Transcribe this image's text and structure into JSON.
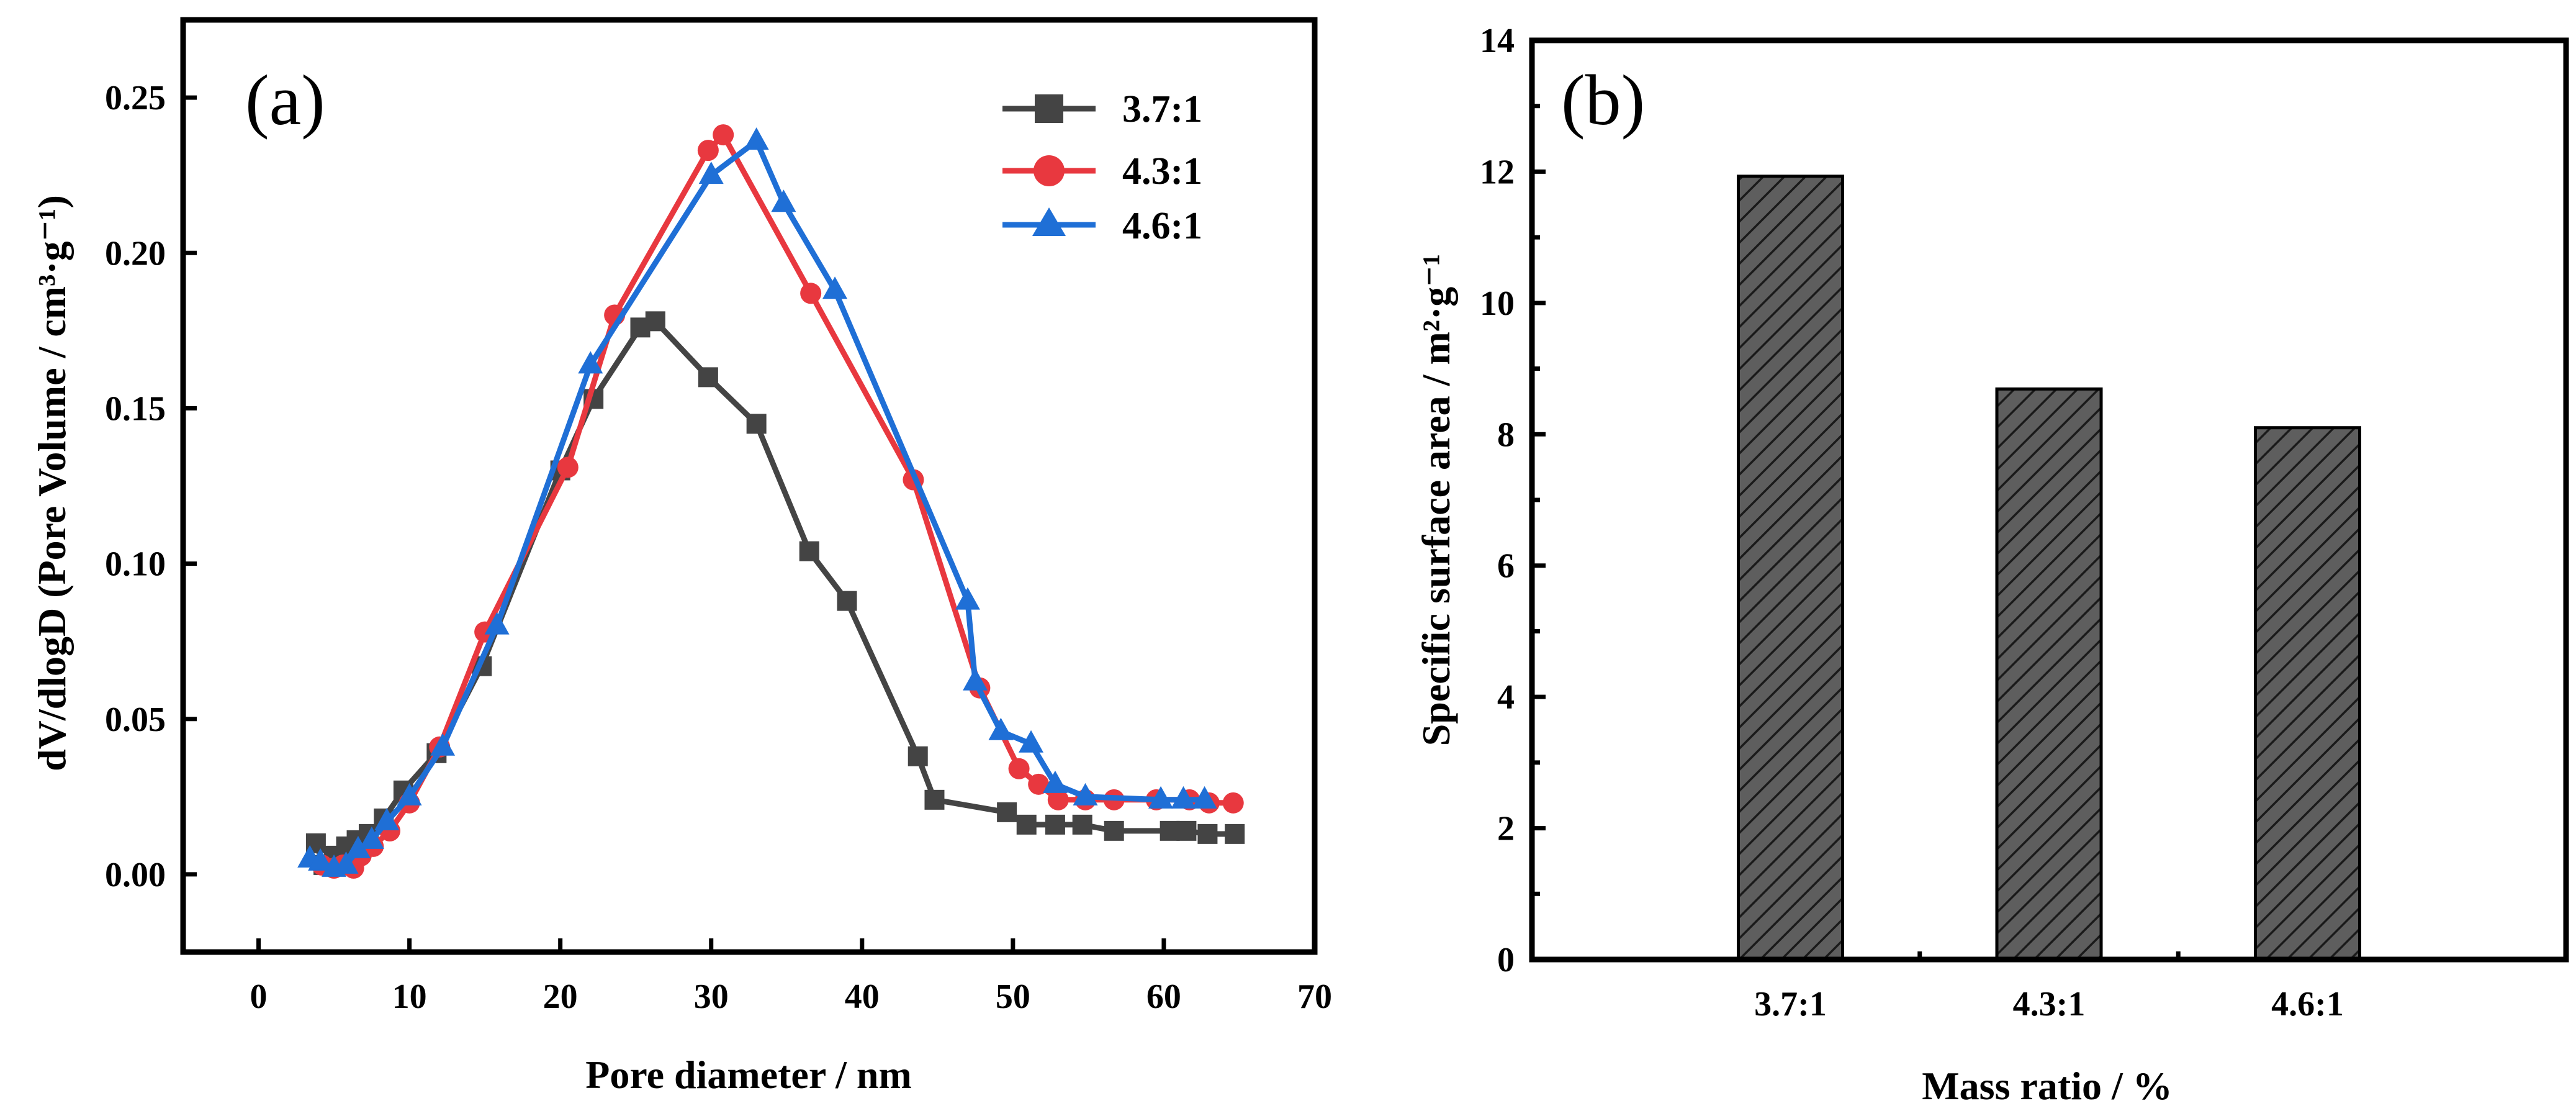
{
  "chart_data": [
    {
      "type": "line",
      "panel_label": "(a)",
      "xlabel": "Pore diameter / nm",
      "ylabel": "dV/dlogD (Pore Volume / cm³·g⁻¹)",
      "xlim": [
        -5,
        70
      ],
      "ylim": [
        -0.025,
        0.275
      ],
      "xticks": [
        "0",
        "10",
        "20",
        "30",
        "40",
        "50",
        "60",
        "70"
      ],
      "yticks": [
        "0.00",
        "0.05",
        "0.10",
        "0.15",
        "0.20",
        "0.25"
      ],
      "legend_position": "top-right",
      "series": [
        {
          "name": "3.7:1",
          "color": "#444444",
          "marker": "square",
          "x": [
            3.8,
            4.3,
            5.0,
            5.8,
            6.5,
            7.3,
            8.3,
            9.6,
            11.8,
            14.8,
            20.0,
            22.2,
            25.3,
            26.3,
            29.8,
            33.0,
            36.5,
            39.0,
            43.7,
            44.8,
            49.6,
            50.9,
            52.8,
            54.6,
            56.7,
            60.4,
            61.5,
            62.9,
            64.7
          ],
          "y": [
            0.01,
            0.003,
            0.006,
            0.009,
            0.011,
            0.013,
            0.018,
            0.027,
            0.039,
            0.067,
            0.13,
            0.153,
            0.176,
            0.178,
            0.16,
            0.145,
            0.104,
            0.088,
            0.038,
            0.024,
            0.02,
            0.016,
            0.016,
            0.016,
            0.014,
            0.014,
            0.014,
            0.013,
            0.013
          ]
        },
        {
          "name": "4.3:1",
          "color": "#e8383f",
          "marker": "circle",
          "x": [
            4.2,
            5.0,
            5.6,
            6.3,
            6.8,
            7.6,
            8.7,
            10.0,
            12.0,
            15.0,
            20.5,
            23.6,
            29.8,
            30.8,
            36.6,
            43.4,
            47.8,
            50.4,
            51.7,
            53.0,
            54.8,
            56.7,
            59.5,
            61.7,
            63.0,
            64.6
          ],
          "y": [
            0.003,
            0.002,
            0.003,
            0.002,
            0.006,
            0.009,
            0.014,
            0.023,
            0.041,
            0.078,
            0.131,
            0.18,
            0.233,
            0.238,
            0.187,
            0.127,
            0.06,
            0.034,
            0.029,
            0.024,
            0.024,
            0.024,
            0.024,
            0.024,
            0.023,
            0.023
          ]
        },
        {
          "name": "4.6:1",
          "color": "#1f6fd6",
          "marker": "triangle",
          "x": [
            3.4,
            4.1,
            5.0,
            5.8,
            6.6,
            7.5,
            8.5,
            10.0,
            12.2,
            15.8,
            22.0,
            30.0,
            33.0,
            34.8,
            38.2,
            47.0,
            47.5,
            49.2,
            51.2,
            52.8,
            54.8,
            59.8,
            61.3,
            62.7
          ],
          "y": [
            0.005,
            0.004,
            0.002,
            0.003,
            0.008,
            0.011,
            0.017,
            0.025,
            0.041,
            0.08,
            0.164,
            0.225,
            0.236,
            0.216,
            0.188,
            0.088,
            0.062,
            0.046,
            0.042,
            0.029,
            0.025,
            0.024,
            0.024,
            0.024
          ]
        }
      ]
    },
    {
      "type": "bar",
      "panel_label": "(b)",
      "xlabel": "Mass ratio / %",
      "ylabel": "Specific surface area / m²·g⁻¹",
      "ylim": [
        0,
        14
      ],
      "yticks": [
        "0",
        "2",
        "4",
        "6",
        "8",
        "10",
        "12",
        "14"
      ],
      "categories": [
        "3.7:1",
        "4.3:1",
        "4.6:1"
      ],
      "values": [
        11.93,
        8.69,
        8.1
      ],
      "bar_color": "#5e5e5e",
      "bar_pattern": "diagonal-hatch"
    }
  ]
}
